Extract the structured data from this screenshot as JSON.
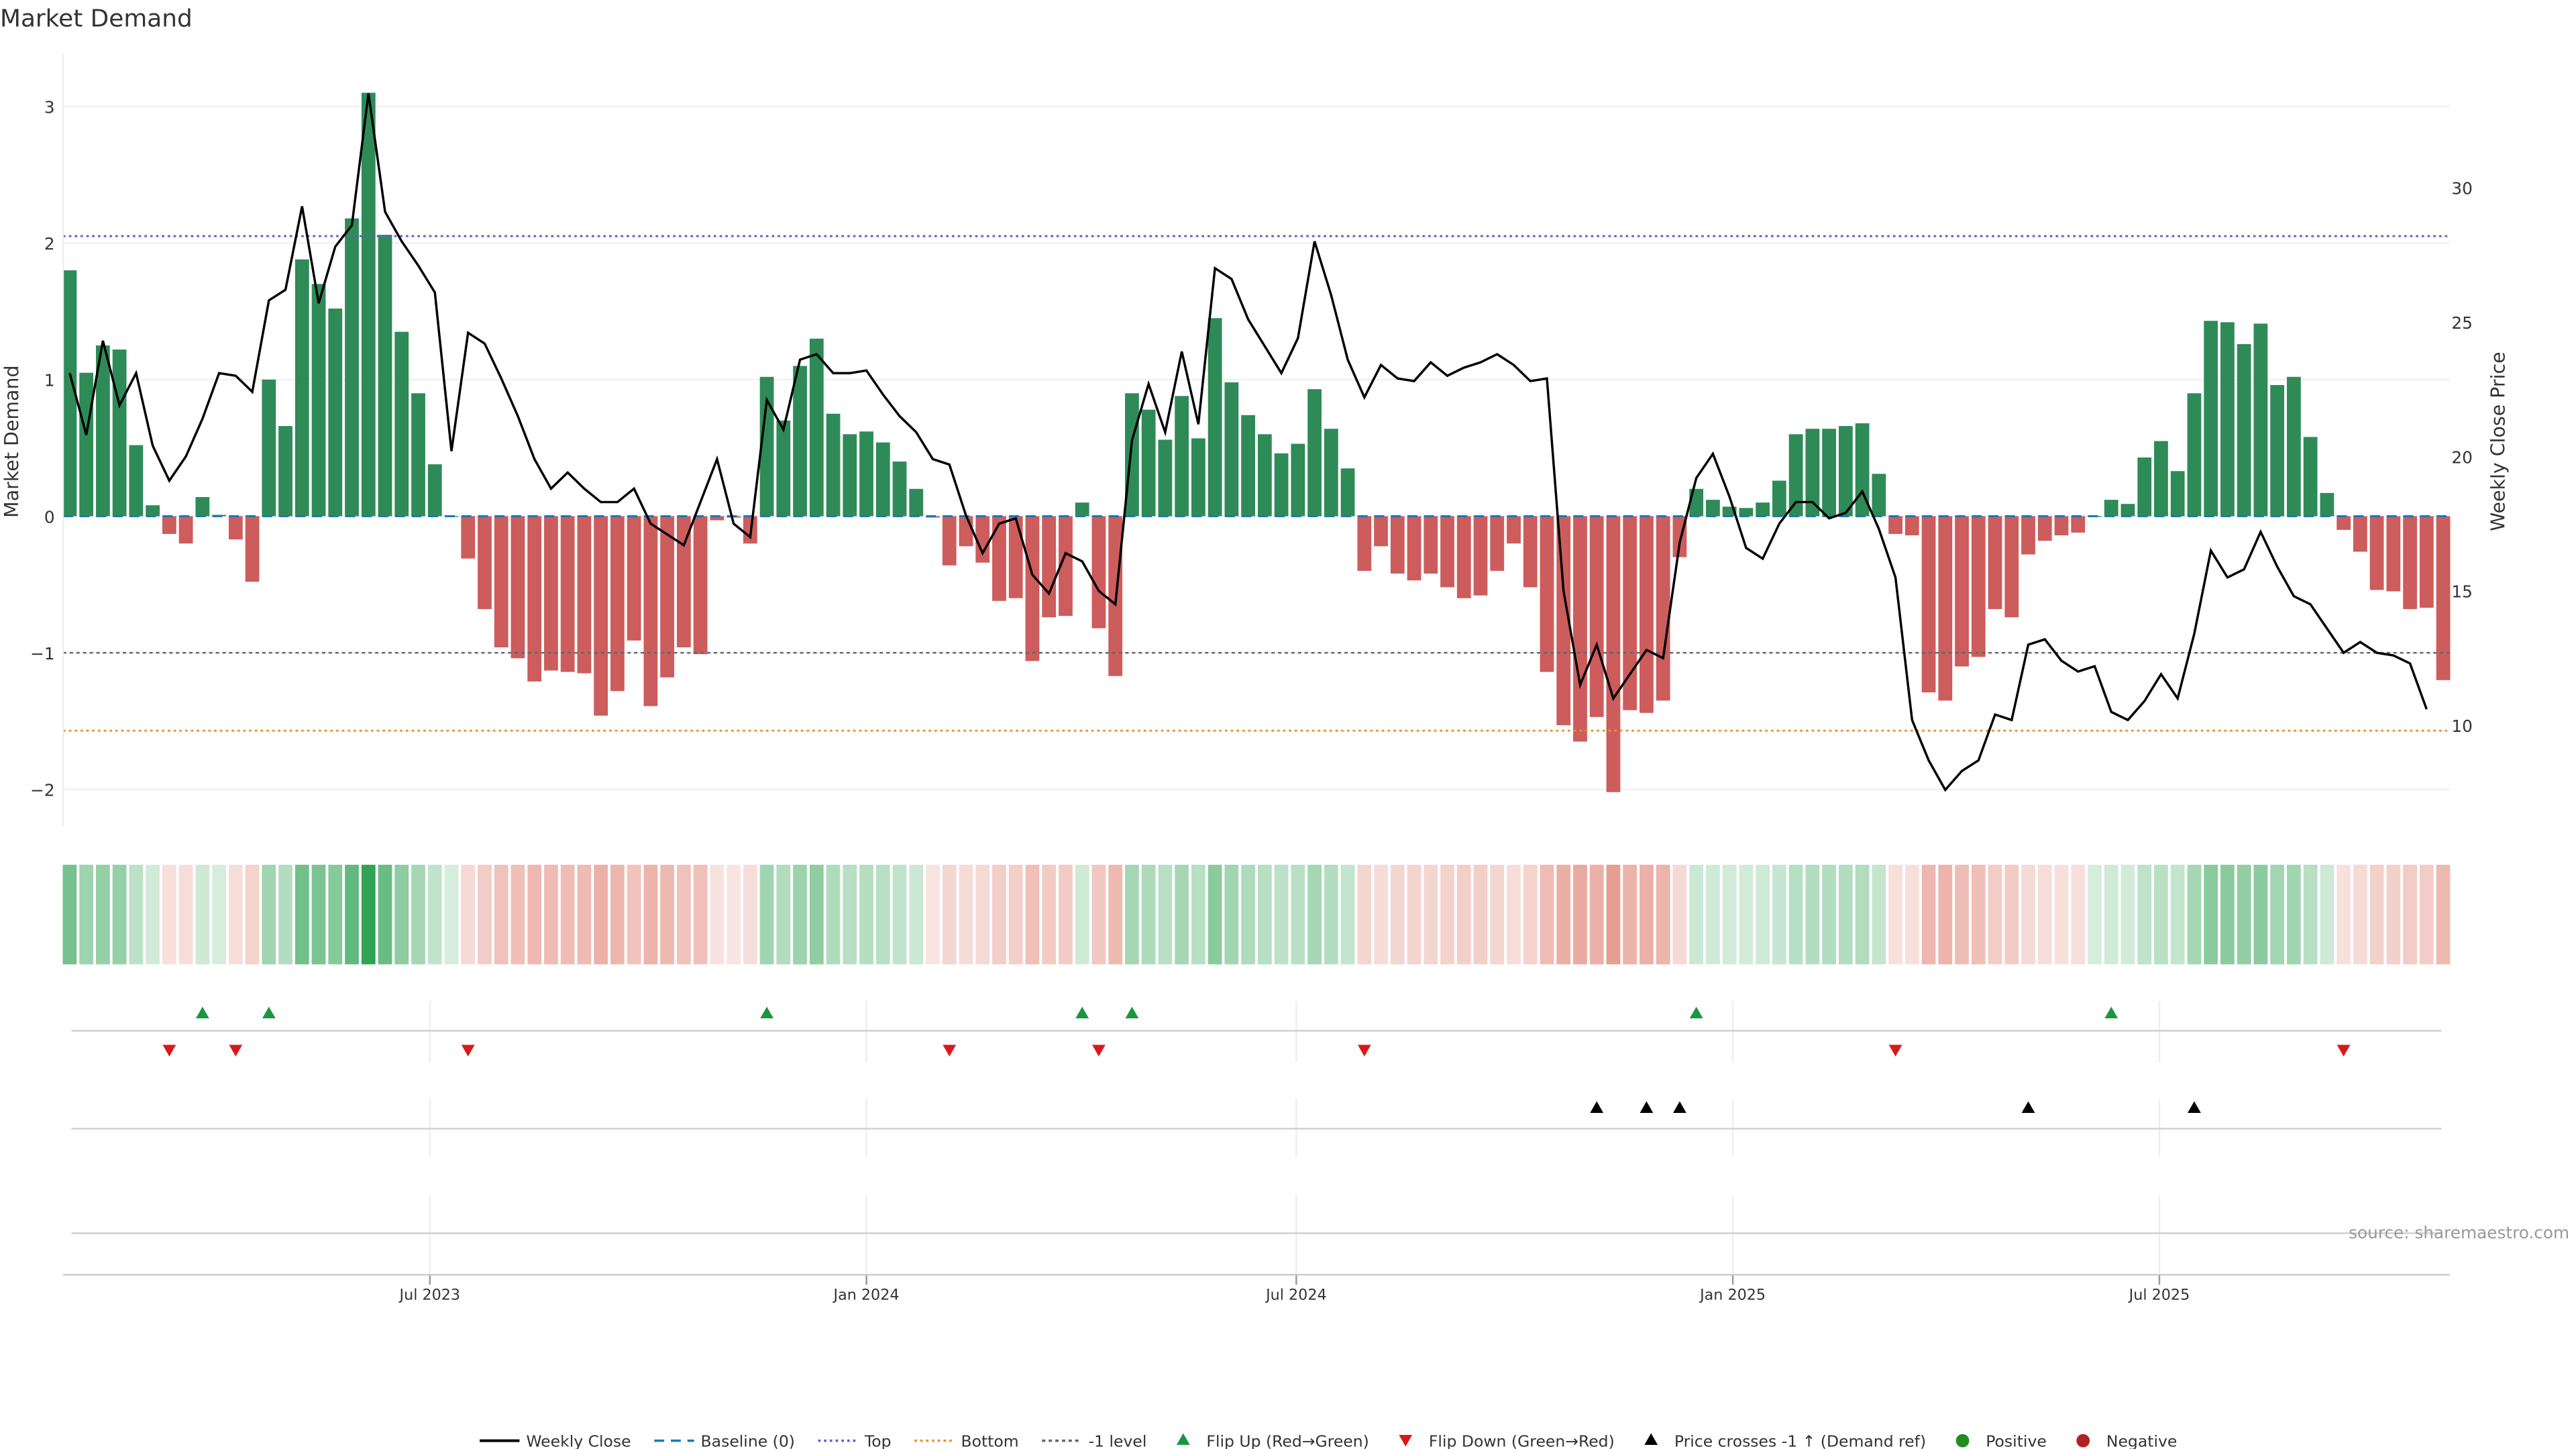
{
  "chart_data": {
    "type": "bar+line",
    "title": "Market Demand",
    "ylabel": "Market Demand",
    "y2label": "Weekly Close Price",
    "ylim": [
      -2.3,
      3.4
    ],
    "y2lim": [
      6.4,
      33.7
    ],
    "yticks": [
      {
        "v": 3,
        "label": "3"
      },
      {
        "v": 2,
        "label": "2"
      },
      {
        "v": 1,
        "label": "1"
      },
      {
        "v": 0,
        "label": "0"
      },
      {
        "v": -1,
        "label": "−1"
      },
      {
        "v": -2,
        "label": "−2"
      }
    ],
    "y2ticks": [
      {
        "v": 30,
        "label": "30"
      },
      {
        "v": 25,
        "label": "25"
      },
      {
        "v": 20,
        "label": "20"
      },
      {
        "v": 15,
        "label": "15"
      },
      {
        "v": 10,
        "label": "10"
      }
    ],
    "xticks": [
      {
        "week": 21.7,
        "label": "Jul 2023"
      },
      {
        "week": 48,
        "label": "Jan 2024"
      },
      {
        "week": 73.9,
        "label": "Jul 2024"
      },
      {
        "week": 100.2,
        "label": "Jan 2025"
      },
      {
        "week": 125.9,
        "label": "Jul 2025"
      }
    ],
    "reference_lines": {
      "top": 2.05,
      "bottom": -1.57,
      "minus_one": -1,
      "baseline": 0
    },
    "demand": [
      1.8,
      1.05,
      1.25,
      1.22,
      0.52,
      0.08,
      -0.13,
      -0.2,
      0.14,
      0.01,
      -0.17,
      -0.48,
      1.0,
      0.66,
      1.88,
      1.7,
      1.52,
      2.18,
      3.1,
      2.06,
      1.35,
      0.9,
      0.38,
      0.0,
      -0.31,
      -0.68,
      -0.96,
      -1.04,
      -1.21,
      -1.13,
      -1.14,
      -1.15,
      -1.46,
      -1.28,
      -0.91,
      -1.39,
      -1.18,
      -0.96,
      -1.01,
      -0.03,
      -0.01,
      -0.2,
      1.02,
      0.7,
      1.1,
      1.3,
      0.75,
      0.6,
      0.62,
      0.54,
      0.4,
      0.2,
      -0.01,
      -0.36,
      -0.22,
      -0.34,
      -0.62,
      -0.6,
      -1.06,
      -0.74,
      -0.73,
      0.1,
      -0.82,
      -1.17,
      0.9,
      0.78,
      0.56,
      0.88,
      0.57,
      1.45,
      0.98,
      0.74,
      0.6,
      0.46,
      0.53,
      0.93,
      0.64,
      0.35,
      -0.4,
      -0.22,
      -0.42,
      -0.47,
      -0.42,
      -0.52,
      -0.6,
      -0.58,
      -0.4,
      -0.2,
      -0.52,
      -1.14,
      -1.53,
      -1.65,
      -1.47,
      -2.02,
      -1.42,
      -1.44,
      -1.35,
      -0.3,
      0.2,
      0.12,
      0.07,
      0.06,
      0.1,
      0.26,
      0.6,
      0.64,
      0.64,
      0.66,
      0.68,
      0.31,
      -0.13,
      -0.14,
      -1.29,
      -1.35,
      -1.1,
      -1.03,
      -0.68,
      -0.74,
      -0.28,
      -0.18,
      -0.14,
      -0.12,
      0.0,
      0.12,
      0.09,
      0.43,
      0.55,
      0.33,
      0.9,
      1.43,
      1.42,
      1.26,
      1.41,
      0.96,
      1.02,
      0.58,
      0.17,
      -0.1,
      -0.26,
      -0.54,
      -0.55,
      -0.68,
      -0.67,
      -1.2
    ],
    "weekly_close": [
      23.1,
      20.8,
      24.3,
      21.9,
      23.1,
      20.4,
      19.1,
      20.0,
      21.4,
      23.1,
      23.0,
      22.4,
      25.8,
      26.2,
      29.3,
      25.7,
      27.8,
      28.6,
      33.5,
      29.1,
      28.0,
      27.1,
      26.1,
      20.2,
      24.6,
      24.2,
      22.9,
      21.5,
      19.9,
      18.8,
      19.4,
      18.8,
      18.3,
      18.3,
      18.8,
      17.5,
      17.1,
      16.7,
      18.3,
      19.9,
      17.5,
      17.0,
      22.1,
      21.0,
      23.6,
      23.8,
      23.1,
      23.1,
      23.2,
      22.3,
      21.5,
      20.9,
      19.9,
      19.7,
      17.8,
      16.4,
      17.5,
      17.7,
      15.6,
      14.9,
      16.4,
      16.1,
      15.0,
      14.5,
      20.6,
      22.7,
      20.9,
      23.9,
      21.2,
      27.0,
      26.6,
      25.1,
      24.1,
      23.1,
      24.4,
      28.0,
      26.0,
      23.6,
      22.2,
      23.4,
      22.9,
      22.8,
      23.5,
      23.0,
      23.3,
      23.5,
      23.8,
      23.4,
      22.8,
      22.9,
      15.0,
      11.5,
      13.0,
      11.0,
      11.9,
      12.8,
      12.5,
      16.8,
      19.2,
      20.1,
      18.5,
      16.6,
      16.2,
      17.5,
      18.3,
      18.3,
      17.7,
      17.9,
      18.7,
      17.3,
      15.5,
      10.2,
      8.7,
      7.6,
      8.3,
      8.7,
      10.4,
      10.2,
      13.0,
      13.2,
      12.4,
      12.0,
      12.2,
      10.5,
      10.2,
      10.9,
      11.9,
      11.0,
      13.4,
      16.5,
      15.5,
      15.8,
      17.2,
      15.9,
      14.8,
      14.5,
      13.6,
      12.7,
      13.1,
      12.7,
      12.6,
      12.3,
      10.6
    ],
    "flip_up_weeks": [
      8,
      12,
      42,
      61,
      64,
      98,
      123
    ],
    "flip_down_weeks": [
      6,
      10,
      24,
      53,
      62,
      78,
      110,
      137
    ],
    "price_cross_weeks": [
      92,
      95,
      97,
      118,
      128
    ],
    "colors": {
      "positive_bar": "#2e8b57",
      "negative_bar": "#cd5c5c",
      "heat_pos": "#31a354",
      "heat_neg": "#d6604d",
      "top": "#6a5acd",
      "bottom": "#e8912e",
      "minus_one": "#666666",
      "baseline": "#1f77b4",
      "flip_up": "#1a9641",
      "flip_down": "#d7191c",
      "cross": "#000000",
      "legend_positive": "#228b22",
      "legend_negative": "#b22222"
    },
    "legend": [
      {
        "key": "weekly-close",
        "label": "Weekly Close"
      },
      {
        "key": "baseline",
        "label": "Baseline (0)"
      },
      {
        "key": "top",
        "label": "Top"
      },
      {
        "key": "bottom",
        "label": "Bottom"
      },
      {
        "key": "minus-one",
        "label": "-1 level"
      },
      {
        "key": "flip-up",
        "label": "Flip Up (Red→Green)"
      },
      {
        "key": "flip-down",
        "label": "Flip Down (Green→Red)"
      },
      {
        "key": "cross",
        "label": "Price crosses -1 ↑ (Demand ref)"
      },
      {
        "key": "positive",
        "label": "Positive"
      },
      {
        "key": "negative",
        "label": "Negative"
      }
    ],
    "source": "source: sharemaestro.com"
  }
}
